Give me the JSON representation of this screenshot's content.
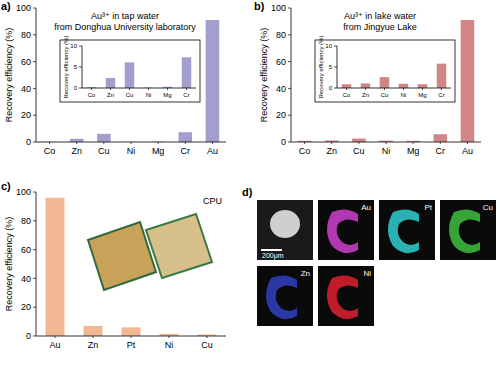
{
  "chart_data": [
    {
      "type": "bar",
      "title": "a)",
      "annotations": [
        "Au³⁺ in tap water",
        "from Donghua University laboratory"
      ],
      "y_label": "Recovery efficiency (%)",
      "categories": [
        "Co",
        "Zn",
        "Cu",
        "Ni",
        "Mg",
        "Cr",
        "Au"
      ],
      "values": [
        0.2,
        2.4,
        6.1,
        0.1,
        0.3,
        7.3,
        91
      ],
      "color": "#a29ecd",
      "ylim": [
        0,
        100
      ],
      "yticks": [
        0,
        20,
        40,
        60,
        80,
        100
      ]
    },
    {
      "type": "bar",
      "y_label": "Recovery efficiency (%)",
      "categories": [
        "Co",
        "Zn",
        "Cu",
        "Ni",
        "Mg",
        "Cr"
      ],
      "values": [
        0.2,
        2.4,
        6.1,
        0.1,
        0.3,
        7.3
      ],
      "color": "#a29ecd",
      "ylim": [
        0,
        10
      ],
      "yticks": [
        0,
        5,
        10
      ]
    },
    {
      "type": "bar",
      "title": "b)",
      "annotations": [
        "Au³⁺ in lake water",
        "from Jingyue Lake"
      ],
      "y_label": "Recovery efficiency (%)",
      "categories": [
        "Co",
        "Zn",
        "Cu",
        "Ni",
        "Mg",
        "Cr",
        "Au"
      ],
      "values": [
        0.9,
        1.1,
        2.6,
        1.0,
        0.9,
        5.8,
        91
      ],
      "color": "#d08686",
      "ylim": [
        0,
        100
      ],
      "yticks": [
        0,
        20,
        40,
        60,
        80,
        100
      ]
    },
    {
      "type": "bar",
      "y_label": "Recovery efficiency (%)",
      "categories": [
        "Co",
        "Zn",
        "Cu",
        "Ni",
        "Mg",
        "Cr"
      ],
      "values": [
        0.9,
        1.1,
        2.6,
        1.0,
        0.9,
        5.8
      ],
      "color": "#d08686",
      "ylim": [
        0,
        10
      ],
      "yticks": [
        0,
        5,
        10
      ]
    },
    {
      "type": "bar",
      "title": "c)",
      "annotations": [
        "CPU"
      ],
      "y_label": "Recovery efficiency (%)",
      "categories": [
        "Au",
        "Zn",
        "Pt",
        "Ni",
        "Cu"
      ],
      "values": [
        96,
        7,
        6,
        1.5,
        1
      ],
      "color": "#f2b894",
      "ylim": [
        0,
        100
      ],
      "yticks": [
        0,
        20,
        40,
        60,
        80,
        100
      ]
    }
  ],
  "panel_d": {
    "title": "d)",
    "scale_bar": "200μm",
    "maps": [
      "Au",
      "Pt",
      "Cu",
      "Zn",
      "Ni"
    ]
  }
}
